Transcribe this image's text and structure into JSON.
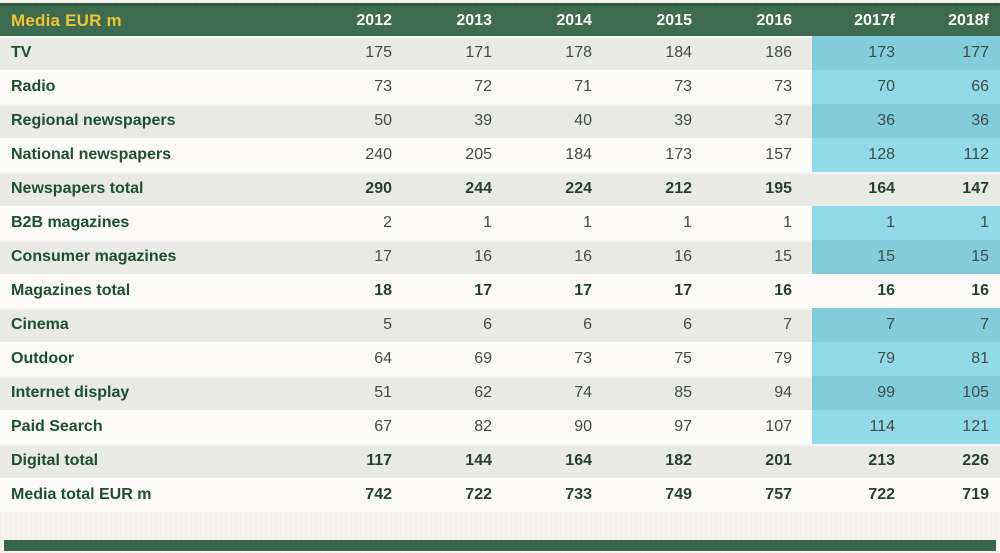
{
  "chart_data": {
    "type": "table",
    "title": "Media EUR m",
    "categories": [
      "2012",
      "2013",
      "2014",
      "2015",
      "2016",
      "2017f",
      "2018f"
    ],
    "forecast_categories": [
      "2017f",
      "2018f"
    ],
    "series": [
      {
        "name": "TV",
        "values": [
          175,
          171,
          178,
          184,
          186,
          173,
          177
        ],
        "total": false
      },
      {
        "name": "Radio",
        "values": [
          73,
          72,
          71,
          73,
          73,
          70,
          66
        ],
        "total": false
      },
      {
        "name": "Regional newspapers",
        "values": [
          50,
          39,
          40,
          39,
          37,
          36,
          36
        ],
        "total": false
      },
      {
        "name": "National newspapers",
        "values": [
          240,
          205,
          184,
          173,
          157,
          128,
          112
        ],
        "total": false
      },
      {
        "name": "Newspapers total",
        "values": [
          290,
          244,
          224,
          212,
          195,
          164,
          147
        ],
        "total": true
      },
      {
        "name": "B2B magazines",
        "values": [
          2,
          1,
          1,
          1,
          1,
          1,
          1
        ],
        "total": false
      },
      {
        "name": "Consumer magazines",
        "values": [
          17,
          16,
          16,
          16,
          15,
          15,
          15
        ],
        "total": false
      },
      {
        "name": "Magazines total",
        "values": [
          18,
          17,
          17,
          17,
          16,
          16,
          16
        ],
        "total": true
      },
      {
        "name": "Cinema",
        "values": [
          5,
          6,
          6,
          6,
          7,
          7,
          7
        ],
        "total": false
      },
      {
        "name": "Outdoor",
        "values": [
          64,
          69,
          73,
          75,
          79,
          79,
          81
        ],
        "total": false
      },
      {
        "name": "Internet display",
        "values": [
          51,
          62,
          74,
          85,
          94,
          99,
          105
        ],
        "total": false
      },
      {
        "name": "Paid Search",
        "values": [
          67,
          82,
          90,
          97,
          107,
          114,
          121
        ],
        "total": false
      },
      {
        "name": "Digital total",
        "values": [
          117,
          144,
          164,
          182,
          201,
          213,
          226
        ],
        "total": true
      },
      {
        "name": "Media total EUR m",
        "values": [
          742,
          722,
          733,
          749,
          757,
          722,
          719
        ],
        "total": true
      }
    ],
    "layout_hints": {
      "forecast_highlight": "cyan background on 2017f and 2018f columns for non-total rows only",
      "total_rows_bold": true,
      "striping": "alternating light green-grey and white rows starting with striped TV row"
    }
  },
  "colors": {
    "header_bg": "#3e6c50",
    "header_title": "#f0c433",
    "header_year": "#fdfdfc",
    "row_stripe": "#e9eae5",
    "row_plain": "#fbfaf8",
    "forecast_stripe": "#83ccdc",
    "forecast_plain": "#92dae9",
    "label_text": "#1e4f31",
    "value_text": "#424c46",
    "total_text": "#26412f",
    "accent_bar": "#38674b",
    "page_bg": "#f6f3f1"
  }
}
